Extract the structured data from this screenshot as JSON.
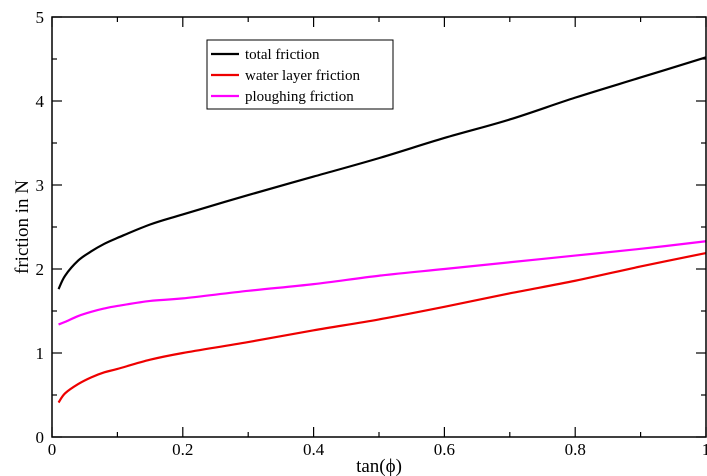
{
  "chart_data": {
    "type": "line",
    "xlabel": "tan(ϕ)",
    "ylabel": "friction in N",
    "xlim": [
      0,
      1
    ],
    "ylim": [
      0,
      5
    ],
    "x_ticks": [
      0,
      0.2,
      0.4,
      0.6,
      0.8,
      1
    ],
    "x_tick_labels": [
      "0",
      "0.2",
      "0.4",
      "0.6",
      "0.8",
      "1"
    ],
    "y_ticks": [
      0,
      1,
      2,
      3,
      4,
      5
    ],
    "y_tick_labels": [
      "0",
      "1",
      "2",
      "3",
      "4",
      "5"
    ],
    "grid": false,
    "legend_position": "top-left",
    "series": [
      {
        "name": "total friction",
        "color": "#000000",
        "x": [
          0.01,
          0.02,
          0.04,
          0.06,
          0.08,
          0.1,
          0.15,
          0.2,
          0.3,
          0.4,
          0.5,
          0.6,
          0.7,
          0.8,
          0.9,
          1.0
        ],
        "y": [
          1.76,
          1.92,
          2.1,
          2.21,
          2.3,
          2.37,
          2.53,
          2.65,
          2.88,
          3.1,
          3.32,
          3.56,
          3.78,
          4.04,
          4.28,
          4.52
        ]
      },
      {
        "name": "water layer friction",
        "color": "#ee0000",
        "x": [
          0.01,
          0.02,
          0.04,
          0.06,
          0.08,
          0.1,
          0.15,
          0.2,
          0.3,
          0.4,
          0.5,
          0.6,
          0.7,
          0.8,
          0.9,
          1.0
        ],
        "y": [
          0.41,
          0.52,
          0.63,
          0.71,
          0.77,
          0.81,
          0.92,
          1.0,
          1.13,
          1.27,
          1.4,
          1.55,
          1.71,
          1.86,
          2.03,
          2.19
        ]
      },
      {
        "name": "ploughing friction",
        "color": "#ff00ff",
        "x": [
          0.01,
          0.02,
          0.04,
          0.06,
          0.08,
          0.1,
          0.15,
          0.2,
          0.3,
          0.4,
          0.5,
          0.6,
          0.7,
          0.8,
          0.9,
          1.0
        ],
        "y": [
          1.34,
          1.37,
          1.44,
          1.49,
          1.53,
          1.56,
          1.62,
          1.65,
          1.74,
          1.82,
          1.92,
          2.0,
          2.08,
          2.16,
          2.24,
          2.33
        ]
      }
    ]
  }
}
